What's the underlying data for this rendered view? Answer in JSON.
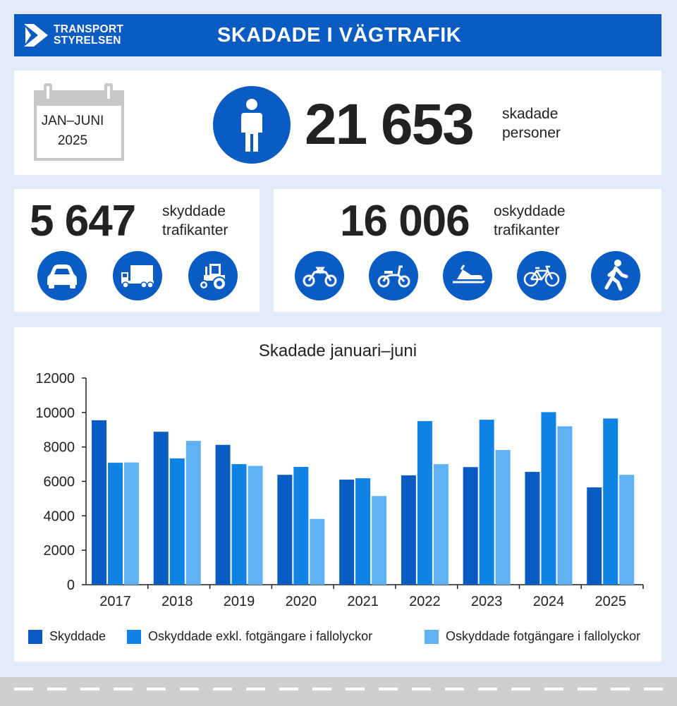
{
  "header": {
    "logo_line1": "TRANSPORT",
    "logo_line2": "STYRELSEN",
    "title": "SKADADE I VÄGTRAFIK"
  },
  "summary": {
    "period_line1": "JAN–JUNI",
    "period_line2": "2025",
    "total": "21 653",
    "total_label_line1": "skadade",
    "total_label_line2": "personer"
  },
  "protected": {
    "value": "5 647",
    "label_line1": "skyddade",
    "label_line2": "trafikanter",
    "icons": [
      "car-icon",
      "truck-icon",
      "tractor-icon"
    ]
  },
  "unprotected": {
    "value": "16 006",
    "label_line1": "oskyddade",
    "label_line2": "trafikanter",
    "icons": [
      "motorcycle-icon",
      "moped-icon",
      "snowmobile-icon",
      "bicycle-icon",
      "pedestrian-icon"
    ]
  },
  "colors": {
    "brand": "#0a5cc2",
    "series1": "#0a5cc2",
    "series2": "#0f82e6",
    "series3": "#5fb0f5"
  },
  "chart_data": {
    "type": "bar",
    "title": "Skadade januari–juni",
    "categories": [
      "2017",
      "2018",
      "2019",
      "2020",
      "2021",
      "2022",
      "2023",
      "2024",
      "2025"
    ],
    "series": [
      {
        "name": "Skyddade",
        "values": [
          9550,
          8880,
          8120,
          6380,
          6100,
          6350,
          6830,
          6550,
          5650
        ]
      },
      {
        "name": "Oskyddade exkl. fotgängare i fallolyckor",
        "values": [
          7080,
          7330,
          7000,
          6840,
          6180,
          9500,
          9580,
          10020,
          9650
        ]
      },
      {
        "name": "Oskyddade fotgängare i fallolyckor",
        "values": [
          7100,
          8350,
          6900,
          3820,
          5150,
          7000,
          7820,
          9200,
          6380
        ]
      }
    ],
    "ylim": [
      0,
      12000
    ],
    "yticks": [
      "0",
      "2000",
      "4000",
      "6000",
      "8000",
      "10000",
      "12000"
    ],
    "grid": false,
    "legend_position": "bottom"
  }
}
